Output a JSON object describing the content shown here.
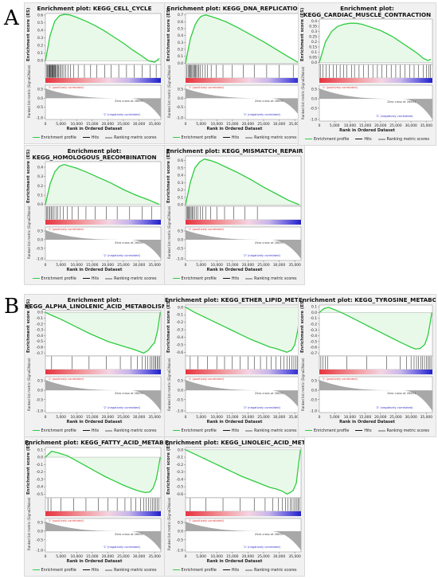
{
  "panel_letters": {
    "a": "A",
    "b": "B"
  },
  "labels": {
    "es_axis": "Enrichment score (ES)",
    "metric_axis": "Ranked list metric (Signal2Noise)",
    "rank_axis": "Rank in Ordered Dataset",
    "pos_corr": "'1' (positively correlated)",
    "neg_corr": "'2' (negatively correlated)",
    "zero_cross": "Zero cross at 26851"
  },
  "legend": {
    "profile": "Enrichment profile",
    "hits": "Hits",
    "ranking": "Ranking metric scores"
  },
  "colors": {
    "profile": "#2ecc40",
    "hits": "#111111",
    "metric": "#a8a8a8",
    "positive": "#e8343f",
    "negative": "#3030d0"
  },
  "chart_data": [
    {
      "type": "line",
      "panel": "A",
      "title_l1": "Enrichment plot: KEGG_CELL_CYCLE",
      "title_l2": "",
      "xlabel": "Rank in Ordered Dataset",
      "ylabel": "Enrichment score (ES)",
      "xlim": [
        0,
        37000
      ],
      "ylim": [
        -0.05,
        0.62
      ],
      "yticks": [
        0.0,
        0.1,
        0.2,
        0.3,
        0.4,
        0.5,
        0.6
      ],
      "x": [
        0,
        1500,
        3000,
        4500,
        6000,
        8000,
        10000,
        13000,
        16000,
        19000,
        22000,
        25000,
        28000,
        31000,
        33000,
        35000,
        36500
      ],
      "y": [
        0,
        0.33,
        0.52,
        0.59,
        0.61,
        0.6,
        0.57,
        0.52,
        0.46,
        0.39,
        0.31,
        0.23,
        0.14,
        0.06,
        0.0,
        -0.02,
        0.03
      ],
      "hits": [
        300,
        600,
        800,
        1100,
        1300,
        1500,
        1700,
        1900,
        2100,
        2300,
        2500,
        2700,
        2900,
        3100,
        3300,
        3600,
        3900,
        4200,
        4600,
        5000,
        5400,
        5900,
        6500,
        7200,
        8000,
        9000,
        10500,
        12500,
        14500,
        16500,
        19000,
        21000,
        23500,
        26000,
        28500,
        31000,
        33500,
        35500
      ]
    },
    {
      "type": "line",
      "panel": "A",
      "title_l1": "Enrichment plot: KEGG_DNA_REPLICATION",
      "title_l2": "",
      "xlabel": "Rank in Ordered Dataset",
      "ylabel": "Enrichment score (ES)",
      "xlim": [
        0,
        37000
      ],
      "ylim": [
        -0.02,
        0.72
      ],
      "yticks": [
        0.0,
        0.1,
        0.2,
        0.3,
        0.4,
        0.5,
        0.6,
        0.7
      ],
      "x": [
        0,
        1500,
        3000,
        4000,
        5000,
        6500,
        8000,
        10000,
        13000,
        17000,
        21000,
        25000,
        29000,
        33000,
        36500
      ],
      "y": [
        0,
        0.35,
        0.55,
        0.63,
        0.68,
        0.7,
        0.68,
        0.65,
        0.6,
        0.51,
        0.41,
        0.31,
        0.2,
        0.09,
        0.0
      ],
      "hits": [
        400,
        800,
        1100,
        1400,
        1700,
        2000,
        2300,
        2600,
        2900,
        3200,
        3500,
        3900,
        4300,
        4800,
        5400,
        6200,
        7000,
        8200,
        9800,
        12000,
        15000,
        18500,
        22000,
        26000,
        30000,
        34500
      ]
    },
    {
      "type": "line",
      "panel": "A",
      "title_l1": "Enrichment plot:",
      "title_l2": "KEGG_CARDIAC_MUSCLE_CONTRACTION",
      "xlabel": "Rank in Ordered Dataset",
      "ylabel": "Enrichment score (ES)",
      "xlim": [
        0,
        37000
      ],
      "ylim": [
        -0.02,
        0.42
      ],
      "yticks": [
        0.0,
        0.05,
        0.1,
        0.15,
        0.2,
        0.25,
        0.3,
        0.35,
        0.4
      ],
      "x": [
        0,
        2000,
        4000,
        6000,
        8000,
        10000,
        12000,
        14000,
        16000,
        18000,
        20000,
        22000,
        24000,
        26000,
        28000,
        30000,
        32000,
        34000,
        35500,
        36500
      ],
      "y": [
        0,
        0.2,
        0.3,
        0.35,
        0.37,
        0.38,
        0.38,
        0.37,
        0.35,
        0.33,
        0.31,
        0.28,
        0.25,
        0.21,
        0.17,
        0.13,
        0.09,
        0.04,
        0.02,
        0.03
      ],
      "hits": [
        300,
        1200,
        2200,
        3300,
        4500,
        5600,
        6800,
        8000,
        9000,
        10500,
        11500,
        13000,
        14500,
        16000,
        17500,
        19000,
        20500,
        22000,
        23500,
        25000,
        26500,
        28000,
        29500,
        31000,
        32500,
        34000,
        35000,
        35800,
        36400
      ]
    },
    {
      "type": "line",
      "panel": "A",
      "title_l1": "Enrichment plot:",
      "title_l2": "KEGG_HOMOLOGOUS_RECOMBINATION",
      "xlabel": "Rank in Ordered Dataset",
      "ylabel": "Enrichment score (ES)",
      "xlim": [
        0,
        37000
      ],
      "ylim": [
        -0.02,
        0.46
      ],
      "yticks": [
        0.0,
        0.1,
        0.2,
        0.3,
        0.4
      ],
      "x": [
        0,
        1500,
        3000,
        4500,
        6000,
        8000,
        10000,
        13000,
        17000,
        21000,
        25000,
        29000,
        33000,
        36500
      ],
      "y": [
        0,
        0.22,
        0.35,
        0.41,
        0.43,
        0.41,
        0.39,
        0.35,
        0.29,
        0.23,
        0.16,
        0.1,
        0.05,
        0.0
      ],
      "hits": [
        300,
        700,
        1100,
        1500,
        1900,
        2300,
        2800,
        3400,
        4000,
        4800,
        5800,
        7000,
        8500,
        10500,
        13000,
        16000,
        19500,
        23000,
        27000,
        31000,
        34000
      ]
    },
    {
      "type": "line",
      "panel": "A",
      "title_l1": "Enrichment plot: KEGG_MISMATCH_REPAIR",
      "title_l2": "",
      "xlabel": "Rank in Ordered Dataset",
      "ylabel": "Enrichment score (ES)",
      "xlim": [
        0,
        37000
      ],
      "ylim": [
        -0.02,
        0.66
      ],
      "yticks": [
        0.0,
        0.1,
        0.2,
        0.3,
        0.4,
        0.5,
        0.6
      ],
      "x": [
        0,
        1500,
        3000,
        4500,
        6000,
        8000,
        10000,
        13000,
        17000,
        21000,
        25000,
        29000,
        33000,
        36500
      ],
      "y": [
        0,
        0.3,
        0.5,
        0.58,
        0.62,
        0.6,
        0.57,
        0.51,
        0.43,
        0.34,
        0.24,
        0.15,
        0.06,
        0.0
      ],
      "hits": [
        300,
        600,
        900,
        1200,
        1500,
        1800,
        2100,
        2500,
        2900,
        3400,
        4000,
        4700,
        5500,
        6500,
        8000,
        10000,
        12500,
        15500,
        19000,
        23000
      ]
    },
    {
      "type": "line",
      "panel": "B",
      "title_l1": "Enrichment plot:",
      "title_l2": "KEGG_ALPHA_LINOLENIC_ACID_METABOLISM",
      "xlabel": "Rank in Ordered Dataset",
      "ylabel": "Enrichment score (ES)",
      "xlim": [
        0,
        37000
      ],
      "ylim": [
        -0.75,
        0.03
      ],
      "yticks": [
        0.0,
        -0.1,
        -0.2,
        -0.3,
        -0.4,
        -0.5,
        -0.6,
        -0.7
      ],
      "x": [
        0,
        2000,
        5000,
        8000,
        11000,
        14000,
        17000,
        20000,
        23000,
        26000,
        28000,
        30000,
        31500,
        33000,
        34000,
        35000,
        36000,
        36800
      ],
      "y": [
        0,
        -0.05,
        -0.12,
        -0.2,
        -0.28,
        -0.36,
        -0.43,
        -0.5,
        -0.55,
        -0.6,
        -0.63,
        -0.67,
        -0.7,
        -0.65,
        -0.58,
        -0.52,
        -0.3,
        0.0
      ],
      "hits": [
        2000,
        8500,
        14000,
        19500,
        24000,
        27500,
        29500,
        31000,
        32000,
        32800,
        33500,
        34000,
        34500,
        35000,
        35400,
        35800,
        36200,
        36600
      ]
    },
    {
      "type": "line",
      "panel": "B",
      "title_l1": "Enrichment plot: KEGG_ETHER_LIPID_METABOLISM",
      "title_l2": "",
      "xlabel": "Rank in Ordered Dataset",
      "ylabel": "Enrichment score (ES)",
      "xlim": [
        0,
        37000
      ],
      "ylim": [
        -0.65,
        0.03
      ],
      "yticks": [
        0.0,
        -0.1,
        -0.2,
        -0.3,
        -0.4,
        -0.5,
        -0.6
      ],
      "x": [
        0,
        3000,
        6000,
        9000,
        12000,
        15000,
        18000,
        21000,
        24000,
        27000,
        29000,
        31000,
        32500,
        34000,
        35000,
        36000,
        36800
      ],
      "y": [
        0,
        -0.07,
        -0.13,
        -0.19,
        -0.25,
        -0.31,
        -0.37,
        -0.43,
        -0.48,
        -0.53,
        -0.55,
        -0.58,
        -0.6,
        -0.57,
        -0.5,
        -0.3,
        0.0
      ],
      "hits": [
        1500,
        4000,
        7000,
        10000,
        12500,
        15000,
        17500,
        20000,
        22000,
        24000,
        26000,
        27500,
        29000,
        30500,
        31500,
        32500,
        33300,
        34000,
        34700,
        35300,
        35900,
        36400
      ]
    },
    {
      "type": "line",
      "panel": "B",
      "title_l1": "Enrichment plot: KEGG_TYROSINE_METABOLISM",
      "title_l2": "",
      "xlabel": "Rank in Ordered Dataset",
      "ylabel": "Enrichment score (ES)",
      "xlim": [
        0,
        37000
      ],
      "ylim": [
        -0.75,
        0.13
      ],
      "yticks": [
        0.1,
        0.0,
        -0.1,
        -0.2,
        -0.3,
        -0.4,
        -0.5,
        -0.6,
        -0.7
      ],
      "x": [
        0,
        1500,
        3000,
        5000,
        8000,
        11000,
        14000,
        17000,
        20000,
        23000,
        26000,
        28000,
        30000,
        31500,
        33000,
        34500,
        35500,
        36200,
        36800
      ],
      "y": [
        0,
        0.07,
        0.09,
        0.05,
        -0.02,
        -0.1,
        -0.18,
        -0.26,
        -0.34,
        -0.42,
        -0.5,
        -0.55,
        -0.6,
        -0.63,
        -0.62,
        -0.55,
        -0.4,
        -0.2,
        0.0
      ],
      "hits": [
        500,
        1200,
        2000,
        2800,
        9000,
        15500,
        22000,
        26500,
        28500,
        30000,
        31000,
        31800,
        32500,
        33200,
        33800,
        34400,
        35000,
        35500,
        36000,
        36500
      ]
    },
    {
      "type": "line",
      "panel": "B",
      "title_l1": "Enrichment plot: KEGG_FATTY_ACID_METABOLISM",
      "title_l2": "",
      "xlabel": "Rank in Ordered Dataset",
      "ylabel": "Enrichment score (ES)",
      "xlim": [
        0,
        37000
      ],
      "ylim": [
        -0.55,
        0.13
      ],
      "yticks": [
        0.1,
        0.0,
        -0.1,
        -0.2,
        -0.3,
        -0.4,
        -0.5
      ],
      "x": [
        0,
        2000,
        4000,
        7000,
        10000,
        13000,
        16000,
        19000,
        22000,
        25000,
        28000,
        30000,
        32000,
        33500,
        34500,
        35500,
        36200,
        36800
      ],
      "y": [
        0,
        0.08,
        0.06,
        0.02,
        -0.05,
        -0.12,
        -0.19,
        -0.26,
        -0.32,
        -0.38,
        -0.43,
        -0.46,
        -0.48,
        -0.47,
        -0.42,
        -0.3,
        -0.15,
        0.0
      ],
      "hits": [
        800,
        1800,
        5000,
        9000,
        13000,
        17000,
        20000,
        23000,
        25500,
        27500,
        29000,
        30500,
        31500,
        32300,
        33000,
        33700,
        34300,
        34900,
        35400,
        35900,
        36400
      ]
    },
    {
      "type": "line",
      "panel": "B",
      "title_l1": "Enrichment plot: KEGG_LINOLEIC_ACID_METABOLISM",
      "title_l2": "",
      "xlabel": "Rank in Ordered Dataset",
      "ylabel": "Enrichment score (ES)",
      "xlim": [
        0,
        37000
      ],
      "ylim": [
        -0.65,
        0.03
      ],
      "yticks": [
        0.0,
        -0.1,
        -0.2,
        -0.3,
        -0.4,
        -0.5,
        -0.6
      ],
      "x": [
        0,
        3000,
        6000,
        9000,
        12000,
        15000,
        18000,
        21000,
        24000,
        27000,
        29000,
        31000,
        32500,
        33500,
        34500,
        35500,
        36200,
        36800
      ],
      "y": [
        0,
        -0.06,
        -0.12,
        -0.18,
        -0.24,
        -0.3,
        -0.36,
        -0.41,
        -0.46,
        -0.51,
        -0.53,
        -0.56,
        -0.6,
        -0.58,
        -0.55,
        -0.45,
        -0.2,
        0.0
      ],
      "hits": [
        1500,
        6500,
        12000,
        17500,
        22000,
        25500,
        28000,
        29800,
        31000,
        32000,
        32800,
        33500,
        34100,
        34700,
        35200,
        35700,
        36100,
        36500
      ]
    }
  ]
}
